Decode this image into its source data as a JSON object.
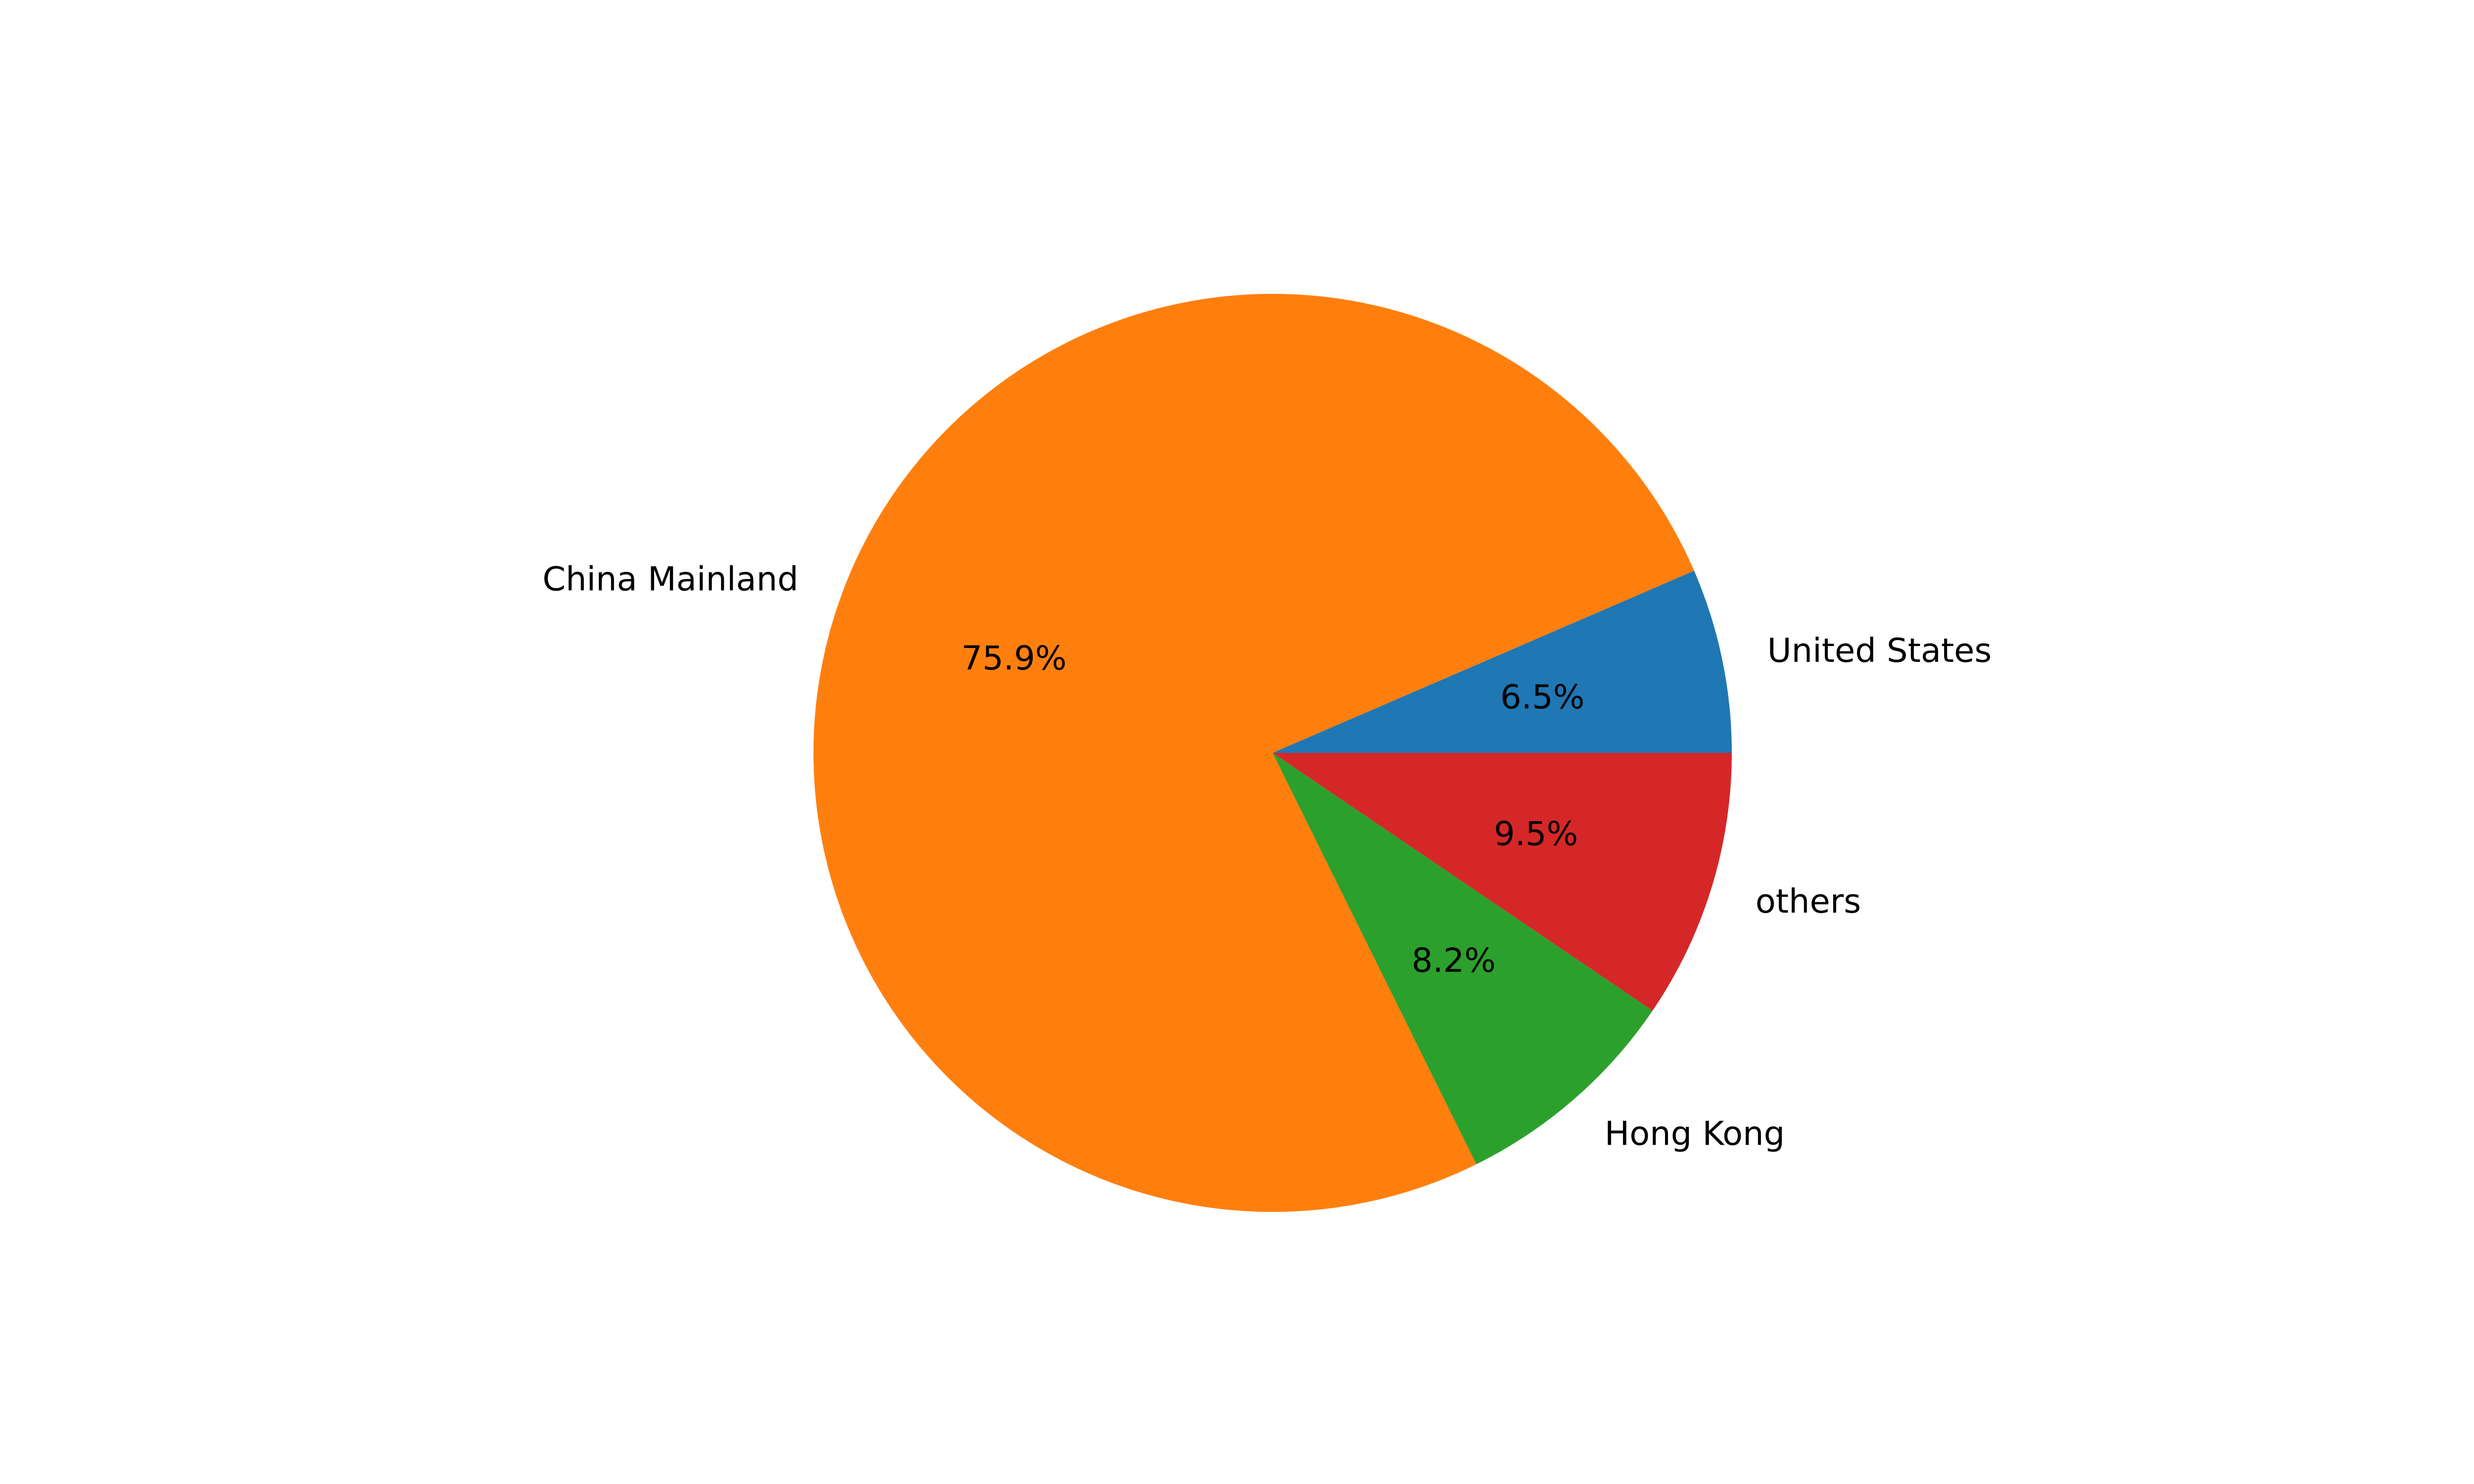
{
  "chart_data": {
    "type": "pie",
    "start_angle_deg": 0,
    "direction": "counterclockwise",
    "slices": [
      {
        "label": "United States",
        "value": 6.5,
        "pct_label": "6.5%",
        "color": "#1f77b4"
      },
      {
        "label": "China Mainland",
        "value": 75.9,
        "pct_label": "75.9%",
        "color": "#ff7f0e"
      },
      {
        "label": "Hong Kong",
        "value": 8.2,
        "pct_label": "8.2%",
        "color": "#2ca02c"
      },
      {
        "label": "others",
        "value": 9.5,
        "pct_label": "9.5%",
        "color": "#d62728"
      }
    ]
  }
}
